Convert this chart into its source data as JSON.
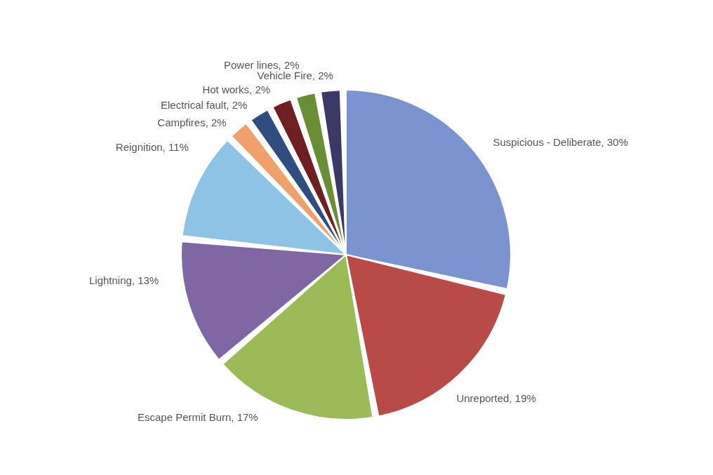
{
  "chart_data": {
    "type": "pie",
    "categories": [
      "Suspicious - Deliberate",
      "Unreported",
      "Escape Permit Burn",
      "Lightning",
      "Reignition",
      "Campfires",
      "Electrical fault",
      "Hot works",
      "Power lines",
      "Vehicle Fire"
    ],
    "values": [
      30,
      19,
      17,
      13,
      11,
      2,
      2,
      2,
      2,
      2
    ],
    "value_labels": [
      "30%",
      "19%",
      "17%",
      "13%",
      "11%",
      "2%",
      "2%",
      "2%",
      "2%",
      "2%"
    ],
    "colors": [
      "#7b93cf",
      "#b84b47",
      "#9bbb59",
      "#7f67a3",
      "#8ec3e6",
      "#f0a06a",
      "#2f4d7e",
      "#6e1f1f",
      "#6a8e35",
      "#3b3a66"
    ],
    "legend": false
  }
}
